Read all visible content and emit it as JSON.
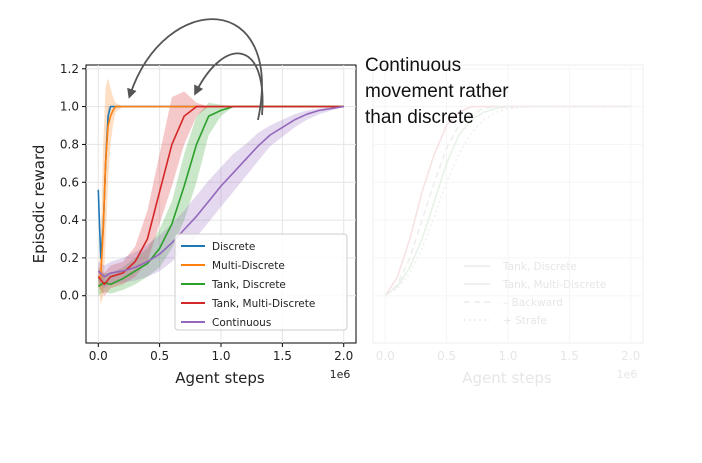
{
  "annotation": {
    "lines": [
      "Continuous",
      "movement rather",
      "than discrete"
    ]
  },
  "chart_data": [
    {
      "type": "line",
      "xlabel": "Agent steps",
      "ylabel": "Episodic reward",
      "x_multiplier_label": "1e6",
      "xlim": [
        -0.1,
        2.1
      ],
      "ylim": [
        -0.25,
        1.22
      ],
      "x_ticks": [
        0.0,
        0.5,
        1.0,
        1.5,
        2.0
      ],
      "x_tick_labels": [
        "0.0",
        "0.5",
        "1.0",
        "1.5",
        "2.0"
      ],
      "y_ticks": [
        0.0,
        0.2,
        0.4,
        0.6,
        0.8,
        1.0,
        1.2
      ],
      "y_tick_labels": [
        "0.0",
        "0.2",
        "0.4",
        "0.6",
        "0.8",
        "1.0",
        "1.2"
      ],
      "grid": true,
      "legend_position": "lower-right",
      "series": [
        {
          "name": "Discrete",
          "color": "#1f77b4",
          "x": [
            0.0,
            0.02,
            0.04,
            0.06,
            0.08,
            0.1,
            0.12,
            2.0
          ],
          "y": [
            0.56,
            0.2,
            0.35,
            0.7,
            0.95,
            1.0,
            1.0,
            1.0
          ],
          "upper": [
            0.56,
            0.3,
            0.45,
            0.8,
            1.0,
            1.0,
            1.0,
            1.0
          ],
          "lower": [
            0.56,
            0.1,
            0.25,
            0.6,
            0.9,
            1.0,
            1.0,
            1.0
          ]
        },
        {
          "name": "Multi-Discrete",
          "color": "#ff7f0e",
          "x": [
            0.0,
            0.02,
            0.04,
            0.06,
            0.08,
            0.1,
            0.12,
            0.14,
            0.2,
            0.3,
            2.0
          ],
          "y": [
            0.1,
            0.1,
            0.35,
            0.7,
            0.9,
            0.95,
            0.98,
            1.0,
            1.0,
            1.0,
            1.0
          ],
          "upper": [
            0.1,
            0.3,
            0.8,
            1.1,
            1.15,
            1.1,
            1.05,
            1.02,
            1.0,
            1.0,
            1.0
          ],
          "lower": [
            0.1,
            -0.05,
            0.0,
            0.3,
            0.6,
            0.8,
            0.9,
            0.97,
            1.0,
            1.0,
            1.0
          ]
        },
        {
          "name": "Tank, Discrete",
          "color": "#2ca02c",
          "x": [
            0.0,
            0.05,
            0.1,
            0.2,
            0.3,
            0.4,
            0.5,
            0.6,
            0.7,
            0.8,
            0.9,
            1.0,
            1.1,
            2.0
          ],
          "y": [
            0.05,
            0.07,
            0.06,
            0.09,
            0.13,
            0.17,
            0.25,
            0.38,
            0.58,
            0.8,
            0.95,
            0.98,
            1.0,
            1.0
          ],
          "upper": [
            0.1,
            0.12,
            0.12,
            0.15,
            0.2,
            0.25,
            0.35,
            0.5,
            0.75,
            0.95,
            1.02,
            1.01,
            1.0,
            1.0
          ],
          "lower": [
            0.0,
            0.02,
            0.01,
            0.03,
            0.06,
            0.1,
            0.15,
            0.25,
            0.4,
            0.6,
            0.85,
            0.95,
            1.0,
            1.0
          ]
        },
        {
          "name": "Tank, Multi-Discrete",
          "color": "#d62728",
          "x": [
            0.0,
            0.05,
            0.1,
            0.2,
            0.3,
            0.4,
            0.5,
            0.6,
            0.7,
            0.8,
            0.9,
            2.0
          ],
          "y": [
            0.1,
            0.06,
            0.1,
            0.12,
            0.18,
            0.3,
            0.55,
            0.8,
            0.95,
            1.0,
            1.0,
            1.0
          ],
          "upper": [
            0.15,
            0.12,
            0.16,
            0.18,
            0.26,
            0.45,
            0.75,
            1.05,
            1.08,
            1.02,
            1.0,
            1.0
          ],
          "lower": [
            0.05,
            0.0,
            0.04,
            0.06,
            0.1,
            0.18,
            0.38,
            0.58,
            0.8,
            0.95,
            1.0,
            1.0
          ]
        },
        {
          "name": "Continuous",
          "color": "#9467bd",
          "x": [
            0.0,
            0.05,
            0.1,
            0.2,
            0.3,
            0.4,
            0.5,
            0.6,
            0.7,
            0.8,
            0.9,
            1.0,
            1.1,
            1.2,
            1.3,
            1.4,
            1.5,
            1.6,
            1.7,
            1.8,
            1.9,
            2.0
          ],
          "y": [
            0.13,
            0.1,
            0.12,
            0.13,
            0.15,
            0.18,
            0.22,
            0.28,
            0.35,
            0.42,
            0.5,
            0.58,
            0.65,
            0.72,
            0.79,
            0.85,
            0.89,
            0.93,
            0.96,
            0.98,
            0.99,
            1.0
          ],
          "upper": [
            0.18,
            0.16,
            0.18,
            0.2,
            0.23,
            0.27,
            0.32,
            0.38,
            0.45,
            0.53,
            0.61,
            0.68,
            0.75,
            0.8,
            0.86,
            0.9,
            0.93,
            0.96,
            0.98,
            0.99,
            1.0,
            1.0
          ],
          "lower": [
            0.08,
            0.04,
            0.06,
            0.07,
            0.08,
            0.1,
            0.13,
            0.18,
            0.25,
            0.31,
            0.39,
            0.47,
            0.55,
            0.63,
            0.71,
            0.79,
            0.84,
            0.89,
            0.93,
            0.96,
            0.98,
            1.0
          ]
        }
      ]
    },
    {
      "type": "line",
      "xlabel": "Agent steps",
      "x_multiplier_label": "1e6",
      "xlim": [
        -0.1,
        2.1
      ],
      "ylim": [
        -0.25,
        1.22
      ],
      "x_ticks": [
        0.0,
        0.5,
        1.0,
        1.5,
        2.0
      ],
      "x_tick_labels": [
        "0.0",
        "0.5",
        "1.0",
        "1.5",
        "2.0"
      ],
      "grid": true,
      "faded": true,
      "legend_position": "lower-right",
      "series": [
        {
          "name": "Tank, Discrete",
          "color": "#e8f2e8",
          "dash": "solid",
          "x": [
            0.0,
            0.1,
            0.2,
            0.3,
            0.4,
            0.5,
            0.6,
            0.7,
            0.8,
            0.9,
            1.0,
            1.1,
            2.0
          ],
          "y": [
            0.0,
            0.05,
            0.15,
            0.3,
            0.5,
            0.7,
            0.85,
            0.93,
            0.97,
            0.99,
            1.0,
            1.0,
            1.0
          ]
        },
        {
          "name": "Tank, Multi-Discrete",
          "color": "#f6e4e4",
          "dash": "solid",
          "x": [
            0.0,
            0.1,
            0.2,
            0.3,
            0.4,
            0.5,
            0.6,
            0.7,
            0.8,
            2.0
          ],
          "y": [
            0.0,
            0.1,
            0.3,
            0.55,
            0.75,
            0.9,
            0.97,
            1.0,
            1.0,
            1.0
          ]
        },
        {
          "name": "– Backward",
          "color": "#eeeeee",
          "dash": "dashed",
          "x": [
            0.0,
            0.1,
            0.2,
            0.3,
            0.4,
            0.5,
            0.6,
            0.7,
            0.8,
            0.9,
            1.0,
            2.0
          ],
          "y": [
            0.0,
            0.06,
            0.2,
            0.4,
            0.6,
            0.78,
            0.9,
            0.96,
            0.99,
            1.0,
            1.0,
            1.0
          ]
        },
        {
          "name": "+ Strafe",
          "color": "#f0f0f0",
          "dash": "dotted",
          "x": [
            0.0,
            0.1,
            0.2,
            0.3,
            0.4,
            0.5,
            0.6,
            0.7,
            0.8,
            0.9,
            1.0,
            1.2,
            2.0
          ],
          "y": [
            0.0,
            0.04,
            0.12,
            0.25,
            0.42,
            0.6,
            0.75,
            0.86,
            0.93,
            0.97,
            0.99,
            1.0,
            1.0
          ]
        }
      ]
    }
  ]
}
